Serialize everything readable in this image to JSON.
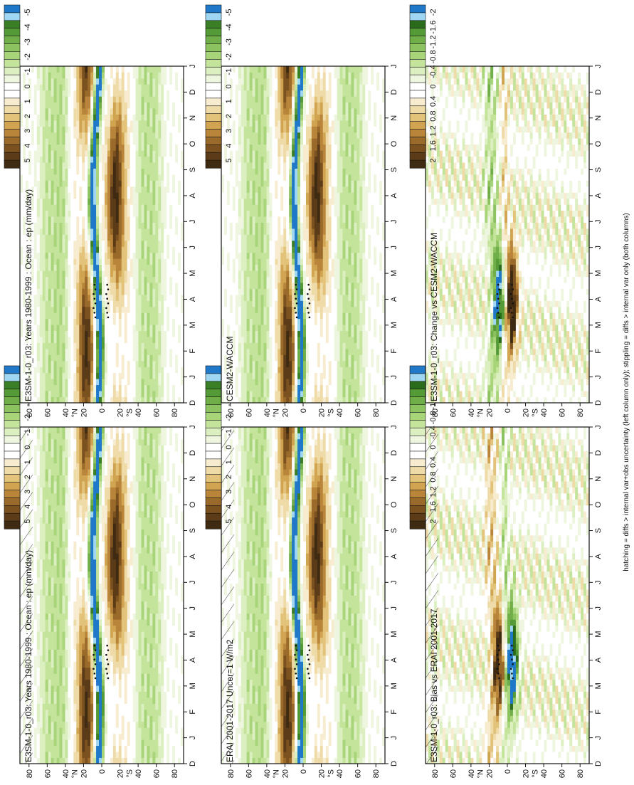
{
  "figure": {
    "footnote": "hatching = diffs > internal var+obs uncertainty (left column only); stippling = diffs > internal var only (both columns)"
  },
  "chart_data": [
    {
      "type": "heatmap",
      "title": "E3SM-1-0_r03: Years 1980-1999 : Ocean : ep (mm/day)",
      "x_ticks": [
        "D",
        "J",
        "F",
        "M",
        "A",
        "M",
        "J",
        "J",
        "A",
        "S",
        "O",
        "N",
        "D",
        "J"
      ],
      "y_ticks": [
        "80",
        "60",
        "40",
        "20",
        "0",
        "20",
        "40",
        "60",
        "80"
      ],
      "y_hemisphere_labels": [
        "°N",
        "°S"
      ],
      "ylim": [
        -90,
        90
      ],
      "hatching": true,
      "stippling": true,
      "colorbar": {
        "ticks": [
          "5",
          "4",
          "3",
          "2",
          "1",
          "0",
          "-1",
          "-2",
          "-3",
          "-4",
          "-5"
        ]
      },
      "features": [
        {
          "name": "northern-dry-band",
          "lat_center": 19,
          "lat_width": 6,
          "value": 4.5,
          "strong_months": "Jan-Mar, Oct-Dec"
        },
        {
          "name": "southern-dry-band",
          "lat_center": -18,
          "lat_width": 7,
          "value": 4.5,
          "strong_months": "Jun-Oct"
        },
        {
          "name": "itcz-wet-band",
          "lat_center": 7,
          "value": -5,
          "strong_months": "Jun-Dec"
        }
      ]
    },
    {
      "type": "heatmap",
      "title": "E3SM-1-0_r03: Years 1980-1999 : Ocean : ep (mm/day)",
      "x_ticks": [
        "D",
        "J",
        "F",
        "M",
        "A",
        "M",
        "J",
        "J",
        "A",
        "S",
        "O",
        "N",
        "D",
        "J"
      ],
      "y_ticks": [
        "80",
        "60",
        "40",
        "20",
        "0",
        "20",
        "40",
        "60",
        "80"
      ],
      "y_hemisphere_labels": [
        "°N",
        "°S"
      ],
      "ylim": [
        -90,
        90
      ],
      "hatching": false,
      "stippling": true,
      "colorbar": {
        "ticks": [
          "5",
          "4",
          "3",
          "2",
          "1",
          "0",
          "-1",
          "-2",
          "-3",
          "-4",
          "-5"
        ]
      },
      "features": [
        {
          "name": "northern-dry-band",
          "lat_center": 19,
          "value": 4.5,
          "strong_months": "Jan-Apr, Oct-Dec"
        },
        {
          "name": "southern-dry-band",
          "lat_center": -18,
          "value": 4.5,
          "strong_months": "Jun-Oct"
        },
        {
          "name": "itcz-wet-band",
          "lat_center": 7,
          "value": -5,
          "strong_months": "Jun-Dec"
        }
      ]
    },
    {
      "type": "heatmap",
      "title": "ERAI 2001-2017 Uncer=1 W/m2",
      "x_ticks": [
        "D",
        "J",
        "F",
        "M",
        "A",
        "M",
        "J",
        "J",
        "A",
        "S",
        "O",
        "N",
        "D",
        "J"
      ],
      "y_ticks": [
        "80",
        "60",
        "40",
        "20",
        "0",
        "20",
        "40",
        "60",
        "80"
      ],
      "y_hemisphere_labels": [
        "°N",
        "°S"
      ],
      "ylim": [
        -90,
        90
      ],
      "hatching": true,
      "stippling": true,
      "colorbar": {
        "ticks": [
          "5",
          "4",
          "3",
          "2",
          "1",
          "0",
          "-1",
          "-2",
          "-3",
          "-4",
          "-5"
        ]
      },
      "features": [
        {
          "name": "northern-dry-band",
          "lat_center": 20,
          "value": 4.5
        },
        {
          "name": "southern-dry-band",
          "lat_center": -17,
          "value": 4.5
        },
        {
          "name": "itcz-wet-band",
          "lat_center": 6,
          "value": -5
        }
      ]
    },
    {
      "type": "heatmap",
      "title": "CESM2-WACCM",
      "x_ticks": [
        "D",
        "J",
        "F",
        "M",
        "A",
        "M",
        "J",
        "J",
        "A",
        "S",
        "O",
        "N",
        "D",
        "J"
      ],
      "y_ticks": [
        "80",
        "60",
        "40",
        "20",
        "0",
        "20",
        "40",
        "60",
        "80"
      ],
      "y_hemisphere_labels": [
        "°N",
        "°S"
      ],
      "ylim": [
        -90,
        90
      ],
      "hatching": false,
      "stippling": true,
      "colorbar": {
        "ticks": [
          "5",
          "4",
          "3",
          "2",
          "1",
          "0",
          "-1",
          "-2",
          "-3",
          "-4",
          "-5"
        ]
      },
      "features": [
        {
          "name": "northern-dry-band",
          "lat_center": 19,
          "value": 4.5
        },
        {
          "name": "southern-dry-band",
          "lat_center": -18,
          "value": 4.5
        },
        {
          "name": "itcz-wet-band",
          "lat_center": 6,
          "value": -5
        }
      ]
    },
    {
      "type": "heatmap",
      "title": "E3SM-1-0_r03: Bias vs ERAI 2001-2017",
      "x_ticks": [
        "D",
        "J",
        "F",
        "M",
        "A",
        "M",
        "J",
        "J",
        "A",
        "S",
        "O",
        "N",
        "D",
        "J"
      ],
      "y_ticks": [
        "80",
        "60",
        "40",
        "20",
        "0",
        "20",
        "40",
        "60",
        "80"
      ],
      "y_hemisphere_labels": [
        "°N",
        "°S"
      ],
      "ylim": [
        -90,
        90
      ],
      "hatching": true,
      "stippling": true,
      "colorbar": {
        "ticks": [
          "2",
          "1.6",
          "1.2",
          "0.8",
          "0.4",
          "0",
          "-0.4",
          "-0.8",
          "-1.2",
          "-1.6",
          "-2"
        ]
      },
      "features": [
        {
          "name": "dry-bias-north-spring",
          "lat_center": 10,
          "value": 1.8,
          "strong_months": "Mar-May"
        },
        {
          "name": "wet-bias-south-spring",
          "lat_center": -5,
          "value": -2,
          "strong_months": "Mar-May"
        }
      ]
    },
    {
      "type": "heatmap",
      "title": "E3SM-1-0_r03: Change vs CESM2-WACCM",
      "x_ticks": [
        "D",
        "J",
        "F",
        "M",
        "A",
        "M",
        "J",
        "J",
        "A",
        "S",
        "O",
        "N",
        "D",
        "J"
      ],
      "y_ticks": [
        "80",
        "60",
        "40",
        "20",
        "0",
        "20",
        "40",
        "60",
        "80"
      ],
      "y_hemisphere_labels": [
        "°N",
        "°S"
      ],
      "ylim": [
        -90,
        90
      ],
      "hatching": false,
      "stippling": true,
      "colorbar": {
        "ticks": [
          "2",
          "1.6",
          "1.2",
          "0.8",
          "0.4",
          "0",
          "-0.4",
          "-0.8",
          "-1.2",
          "-1.6",
          "-2"
        ]
      },
      "features": [
        {
          "name": "wet-change-north",
          "lat_center": 10,
          "value": -2,
          "strong_months": "Feb-Jun"
        },
        {
          "name": "dry-change-south",
          "lat_center": -6,
          "value": 1.8,
          "strong_months": "Feb-Jun"
        }
      ]
    }
  ],
  "colors": {
    "precip_scale": [
      "#3f2a12",
      "#5c3c18",
      "#7b521f",
      "#9a6a2a",
      "#b9853a",
      "#d1a452",
      "#e3c37a",
      "#efdba8",
      "#f7eccf",
      "#ffffff",
      "#ffffff",
      "#eef6e0",
      "#dcefc0",
      "#c4e49c",
      "#a8d47a",
      "#8cc260",
      "#6fae48",
      "#549a36",
      "#3a7e26",
      "#9fd6f2",
      "#1f78c8"
    ],
    "diff_scale": [
      "#3f2a12",
      "#5c3c18",
      "#7b521f",
      "#9a6a2a",
      "#b9853a",
      "#d1a452",
      "#e3c37a",
      "#efdba8",
      "#f7eccf",
      "#ffffff",
      "#ffffff",
      "#eef6e0",
      "#dcefc0",
      "#c4e49c",
      "#a8d47a",
      "#8cc260",
      "#6fae48",
      "#549a36",
      "#2b6b1c",
      "#9fd6f2",
      "#1f78c8"
    ]
  }
}
